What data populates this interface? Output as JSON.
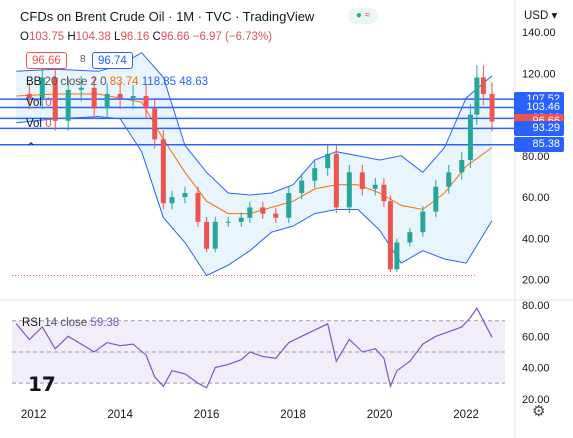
{
  "header": {
    "title": "CFDs on Brent Crude Oil",
    "interval": "1M",
    "source": "TVC",
    "platform": "TradingView",
    "currency": "USD",
    "currency_caret": "▾"
  },
  "ohlc": {
    "o_label": "O",
    "o": "103.75",
    "h_label": "H",
    "h": "104.38",
    "l_label": "L",
    "l": "96.16",
    "c_label": "C",
    "c": "96.66",
    "change": "−6.97 (−6.73%)"
  },
  "price_boxes": {
    "sell": "96.66",
    "spread": "8",
    "buy": "96.74"
  },
  "indicators": {
    "bb": {
      "name": "BB",
      "params": "20 close 2 0",
      "basis": "83.74",
      "upper": "118.85",
      "lower": "48.63"
    },
    "vol1": {
      "name": "Vol",
      "value": "0"
    },
    "vol2": {
      "name": "Vol",
      "value": "0"
    },
    "rsi": {
      "name": "RSI",
      "params": "14 close",
      "value": "59.38"
    }
  },
  "price_tags": [
    {
      "label": "107.52",
      "value": 107.52,
      "color": "#2962ff"
    },
    {
      "label": "103.46",
      "value": 103.46,
      "color": "#2962ff"
    },
    {
      "label": "98.16",
      "value": 98.16,
      "color": "#2962ff"
    },
    {
      "label": "96.66",
      "value": 96.66,
      "color": "#ef5350"
    },
    {
      "label": "93.29",
      "value": 93.29,
      "color": "#2962ff"
    },
    {
      "label": "85.38",
      "value": 85.38,
      "color": "#2962ff"
    }
  ],
  "colors": {
    "up": "#26a69a",
    "down": "#ef5350",
    "bb_upper": "#2962ff",
    "bb_basis": "#ff6d00",
    "bb_fill": "#e3f2fd",
    "rsi": "#7e57c2",
    "rsi_fill": "#ede7f6",
    "hline": "#2962ff"
  },
  "chart_data": [
    {
      "type": "candlestick",
      "title": "CFDs on Brent Crude Oil, 1M, TVC",
      "y_axis_ticks": [
        20,
        40,
        60,
        80,
        100,
        120,
        140
      ],
      "y_axis_tick_labels": [
        "20.00",
        "40.00",
        "60.00",
        "80.00",
        "100.00",
        "120.00",
        "140.00"
      ],
      "ylim": [
        14,
        141
      ],
      "x_axis_ticks": [
        "2012",
        "2014",
        "2016",
        "2018",
        "2020",
        "2022"
      ],
      "xlim": [
        2011.5,
        2022.9
      ],
      "grid": false,
      "horizontal_levels": [
        107.52,
        103.46,
        98.16,
        93.29,
        85.38
      ],
      "dotted_level": 22,
      "series": [
        {
          "name": "Brent monthly close",
          "x": [
            2011.6,
            2011.9,
            2012.2,
            2012.5,
            2012.8,
            2013.1,
            2013.4,
            2013.7,
            2014.0,
            2014.3,
            2014.6,
            2014.8,
            2015.0,
            2015.2,
            2015.5,
            2015.8,
            2016.0,
            2016.2,
            2016.5,
            2016.8,
            2017.0,
            2017.3,
            2017.6,
            2017.9,
            2018.2,
            2018.5,
            2018.8,
            2019.0,
            2019.3,
            2019.6,
            2019.9,
            2020.1,
            2020.25,
            2020.4,
            2020.7,
            2021.0,
            2021.3,
            2021.6,
            2021.9,
            2022.1,
            2022.25,
            2022.4,
            2022.6
          ],
          "close": [
            110,
            108,
            118,
            97,
            112,
            113,
            103,
            110,
            108,
            109,
            103,
            88,
            57,
            60,
            62,
            48,
            35,
            48,
            48,
            50,
            55,
            52,
            50,
            62,
            68,
            74,
            81,
            55,
            72,
            64,
            66,
            58,
            25,
            38,
            43,
            53,
            65,
            72,
            78,
            100,
            118,
            110,
            96.66
          ]
        },
        {
          "name": "BB basis",
          "x": [
            2011.6,
            2012.5,
            2013.5,
            2014.5,
            2015.0,
            2015.5,
            2016.0,
            2016.5,
            2017.0,
            2017.5,
            2018.0,
            2018.5,
            2019.0,
            2019.5,
            2020.0,
            2020.5,
            2021.0,
            2021.5,
            2022.0,
            2022.6
          ],
          "values": [
            109,
            110,
            110,
            106,
            88,
            72,
            58,
            52,
            52,
            55,
            58,
            64,
            66,
            66,
            62,
            56,
            54,
            62,
            75,
            84
          ]
        },
        {
          "name": "BB upper",
          "x": [
            2011.6,
            2012.5,
            2013.5,
            2014.0,
            2014.5,
            2015.0,
            2015.5,
            2016.0,
            2016.5,
            2017.0,
            2017.5,
            2018.0,
            2018.5,
            2019.0,
            2019.5,
            2020.0,
            2020.5,
            2021.0,
            2021.5,
            2022.0,
            2022.6
          ],
          "values": [
            121,
            122,
            121,
            124,
            130,
            118,
            85,
            72,
            62,
            61,
            62,
            66,
            78,
            82,
            80,
            78,
            80,
            72,
            84,
            108,
            118.85
          ]
        },
        {
          "name": "BB lower",
          "x": [
            2011.6,
            2012.5,
            2013.5,
            2014.0,
            2014.5,
            2015.0,
            2015.5,
            2016.0,
            2016.5,
            2017.0,
            2017.5,
            2018.0,
            2018.5,
            2019.0,
            2019.5,
            2020.0,
            2020.5,
            2021.0,
            2021.5,
            2022.0,
            2022.6
          ],
          "values": [
            96,
            98,
            99,
            98,
            82,
            50,
            38,
            22,
            27,
            34,
            43,
            46,
            52,
            54,
            54,
            44,
            28,
            34,
            30,
            28,
            48.63
          ]
        }
      ]
    },
    {
      "type": "line",
      "title": "RSI 14 close",
      "y_axis_ticks": [
        20,
        40,
        60,
        80
      ],
      "y_axis_tick_labels": [
        "20.00",
        "40.00",
        "60.00",
        "80.00"
      ],
      "ylim": [
        16,
        82
      ],
      "levels": [
        70,
        50,
        30
      ],
      "xlim": [
        2011.5,
        2022.9
      ],
      "series": [
        {
          "name": "RSI",
          "x": [
            2011.6,
            2011.9,
            2012.2,
            2012.5,
            2012.8,
            2013.1,
            2013.4,
            2013.7,
            2014.0,
            2014.3,
            2014.6,
            2014.8,
            2015.0,
            2015.2,
            2015.5,
            2015.8,
            2016.0,
            2016.2,
            2016.5,
            2016.8,
            2017.0,
            2017.3,
            2017.6,
            2017.9,
            2018.2,
            2018.5,
            2018.8,
            2019.0,
            2019.3,
            2019.6,
            2019.9,
            2020.1,
            2020.25,
            2020.4,
            2020.7,
            2021.0,
            2021.3,
            2021.6,
            2021.9,
            2022.1,
            2022.25,
            2022.4,
            2022.6
          ],
          "values": [
            68,
            58,
            66,
            52,
            60,
            55,
            50,
            56,
            54,
            55,
            48,
            34,
            28,
            38,
            36,
            30,
            27,
            40,
            42,
            45,
            50,
            47,
            46,
            56,
            60,
            64,
            68,
            44,
            58,
            50,
            52,
            46,
            28,
            38,
            44,
            55,
            60,
            63,
            66,
            72,
            78,
            70,
            59.38
          ]
        }
      ]
    }
  ]
}
